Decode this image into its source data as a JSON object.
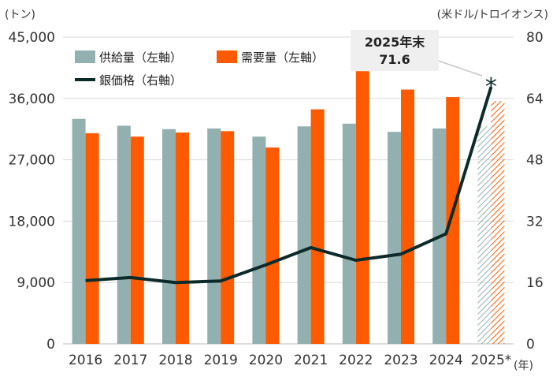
{
  "chart_data": {
    "type": "bar",
    "categories": [
      "2016",
      "2017",
      "2018",
      "2019",
      "2020",
      "2021",
      "2022",
      "2023",
      "2024",
      "2025*"
    ],
    "x_unit": "(年)",
    "left_axis": {
      "unit": "(トン)",
      "range": [
        0,
        45000
      ],
      "ticks": [
        "0",
        "9,000",
        "18,000",
        "27,000",
        "36,000",
        "45,000"
      ]
    },
    "right_axis": {
      "unit": "(米ドル/トロイオンス)",
      "range": [
        0,
        80
      ],
      "ticks": [
        "0",
        "16",
        "32",
        "48",
        "64",
        "80"
      ]
    },
    "series": [
      {
        "name": "供給量（左軸）",
        "kind": "bar",
        "axis": "left",
        "color": "#93b0b0",
        "values": [
          33000,
          32000,
          31500,
          31600,
          30400,
          31900,
          32300,
          31100,
          31600,
          31900
        ],
        "hatched_last": true
      },
      {
        "name": "需要量（左軸）",
        "kind": "bar",
        "axis": "left",
        "color": "#ff5a00",
        "values": [
          30900,
          30400,
          31000,
          31200,
          28800,
          34400,
          40000,
          37300,
          36200,
          35600
        ],
        "hatched_last": true
      },
      {
        "name": "銀価格（右軸）",
        "kind": "line",
        "axis": "right",
        "color": "#0d2a2a",
        "values": [
          16.5,
          17.3,
          16.0,
          16.4,
          20.6,
          25.1,
          21.8,
          23.4,
          28.7,
          67.0
        ]
      }
    ],
    "forecast_marker": "*",
    "annotation": {
      "year": "2025年末",
      "value": "71.6"
    },
    "grid": true,
    "legend_placement": "top-left"
  }
}
